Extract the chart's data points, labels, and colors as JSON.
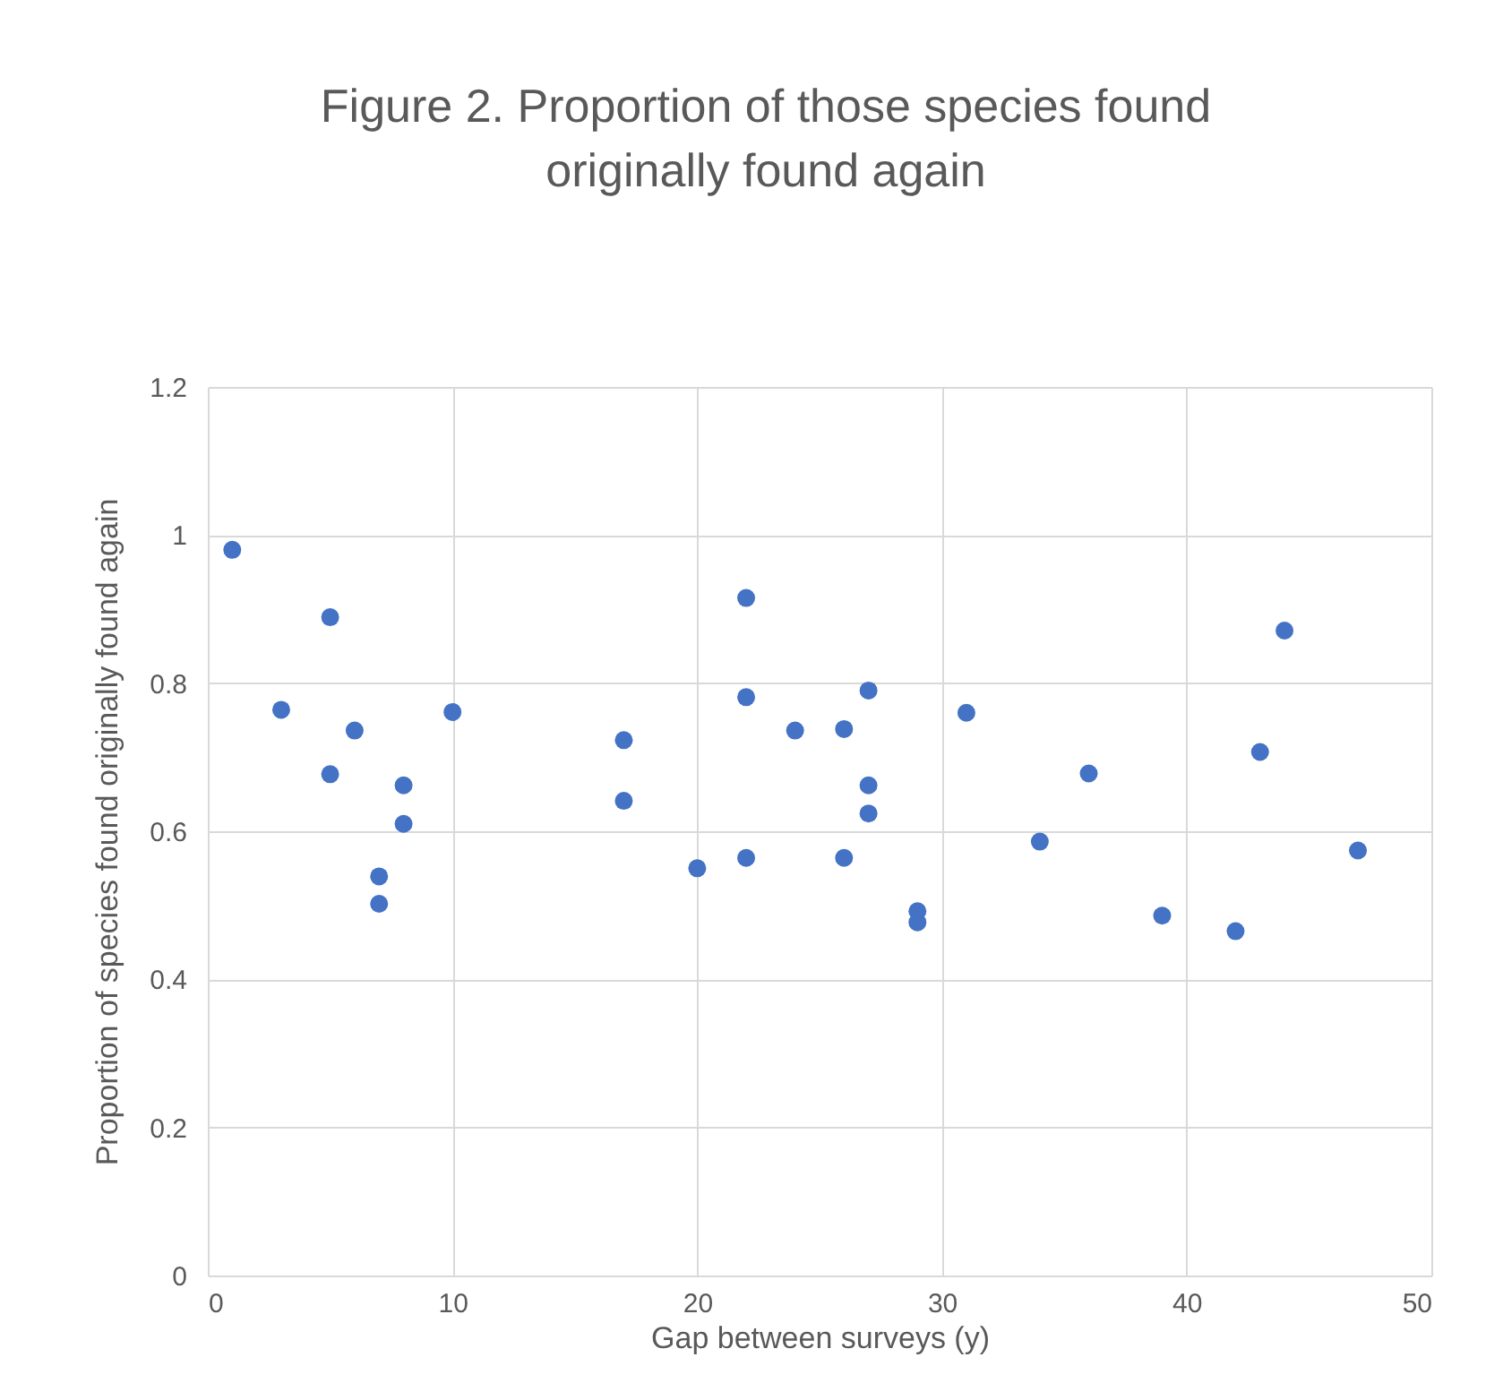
{
  "chart_data": {
    "type": "scatter",
    "title": "Figure 2. Proportion of those species found originally found again",
    "xlabel": "Gap between surveys (y)",
    "ylabel": "Proportion of species found originally found again",
    "x": [
      1,
      3,
      5,
      5,
      6,
      7,
      7,
      8,
      8,
      10,
      17,
      17,
      20,
      22,
      22,
      22,
      24,
      26,
      26,
      27,
      27,
      27,
      29,
      29,
      31,
      34,
      36,
      39,
      42,
      43,
      44,
      47
    ],
    "series": [
      {
        "color": "#4472c4",
        "values": [
          0.98,
          0.764,
          0.889,
          0.677,
          0.736,
          0.539,
          0.502,
          0.662,
          0.61,
          0.761,
          0.723,
          0.641,
          0.55,
          0.915,
          0.781,
          0.564,
          0.736,
          0.738,
          0.564,
          0.79,
          0.662,
          0.624,
          0.492,
          0.477,
          0.76,
          0.586,
          0.678,
          0.486,
          0.465,
          0.707,
          0.871,
          0.574
        ]
      }
    ],
    "xlim": [
      0,
      50
    ],
    "xticks": [
      0,
      10,
      20,
      30,
      40,
      50
    ],
    "ylim": [
      0,
      1.2
    ],
    "yticks": [
      0,
      0.2,
      0.4,
      0.6,
      0.8,
      1,
      1.2
    ],
    "grid": true,
    "marker": "circle",
    "legend": false
  }
}
